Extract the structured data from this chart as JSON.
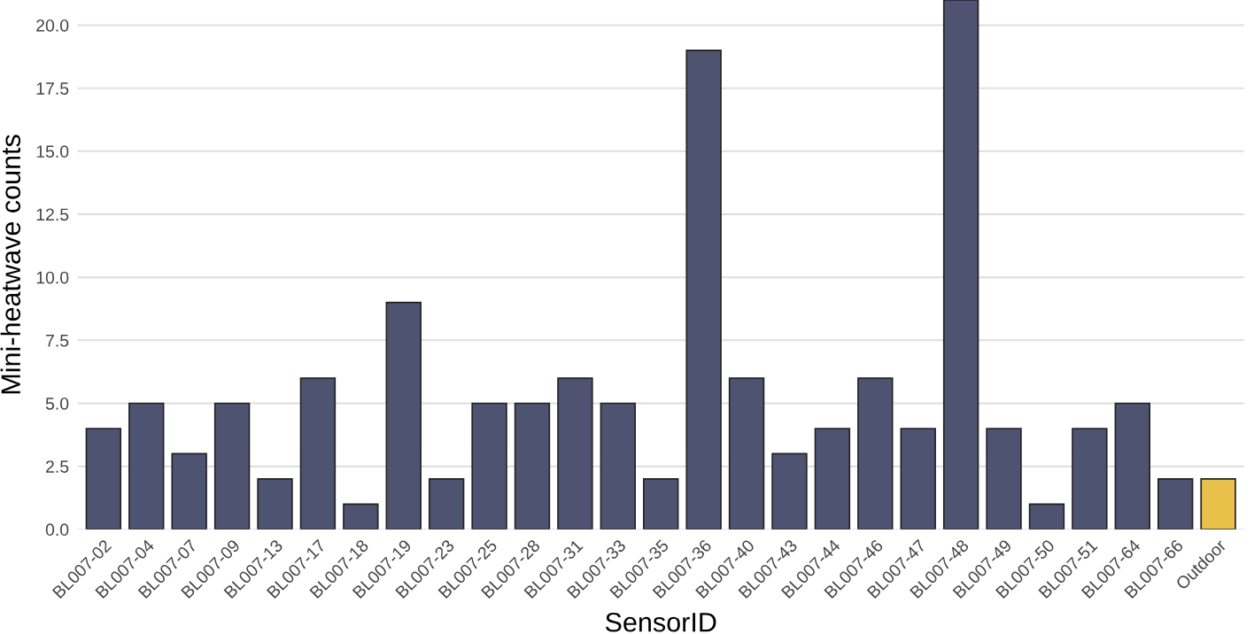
{
  "chart_data": {
    "type": "bar",
    "xlabel": "SensorID",
    "ylabel": "Mini-heatwave counts",
    "categories": [
      "BL007-02",
      "BL007-04",
      "BL007-07",
      "BL007-09",
      "BL007-13",
      "BL007-17",
      "BL007-18",
      "BL007-19",
      "BL007-23",
      "BL007-25",
      "BL007-28",
      "BL007-31",
      "BL007-33",
      "BL007-35",
      "BL007-36",
      "BL007-40",
      "BL007-43",
      "BL007-44",
      "BL007-46",
      "BL007-47",
      "BL007-48",
      "BL007-49",
      "BL007-50",
      "BL007-51",
      "BL007-64",
      "BL007-66",
      "Outdoor"
    ],
    "values": [
      4,
      5,
      3,
      5,
      2,
      6,
      1,
      9,
      2,
      5,
      5,
      6,
      5,
      2,
      19,
      6,
      3,
      4,
      6,
      4,
      21,
      4,
      1,
      4,
      5,
      2,
      2
    ],
    "colors": [
      "#4f5372",
      "#4f5372",
      "#4f5372",
      "#4f5372",
      "#4f5372",
      "#4f5372",
      "#4f5372",
      "#4f5372",
      "#4f5372",
      "#4f5372",
      "#4f5372",
      "#4f5372",
      "#4f5372",
      "#4f5372",
      "#4f5372",
      "#4f5372",
      "#4f5372",
      "#4f5372",
      "#4f5372",
      "#4f5372",
      "#4f5372",
      "#4f5372",
      "#4f5372",
      "#4f5372",
      "#4f5372",
      "#4f5372",
      "#e8c04a"
    ],
    "ylim": [
      0,
      21
    ],
    "yticks": [
      {
        "value": 0,
        "label": "0.0"
      },
      {
        "value": 2.5,
        "label": "2.5"
      },
      {
        "value": 5,
        "label": "5.0"
      },
      {
        "value": 7.5,
        "label": "7.5"
      },
      {
        "value": 10,
        "label": "10.0"
      },
      {
        "value": 12.5,
        "label": "12.5"
      },
      {
        "value": 15,
        "label": "15.0"
      },
      {
        "value": 17.5,
        "label": "17.5"
      },
      {
        "value": 20,
        "label": "20.0"
      }
    ],
    "grid": "y",
    "legend": false
  }
}
